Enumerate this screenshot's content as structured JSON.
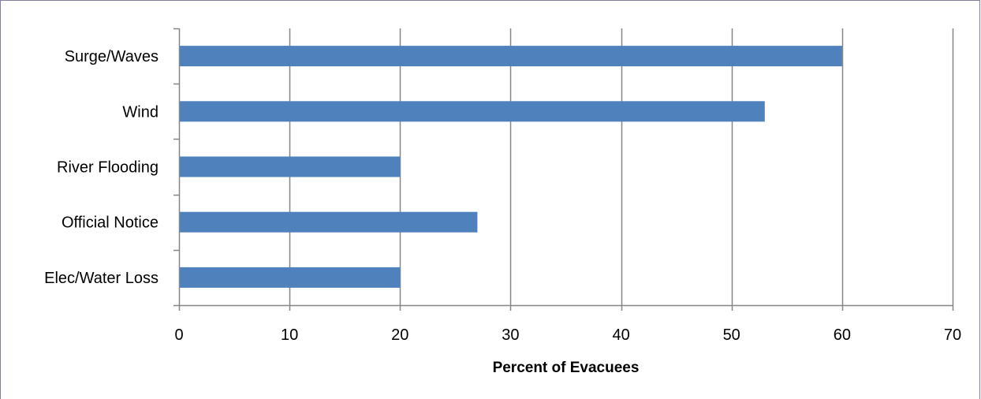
{
  "chart_data": {
    "type": "bar",
    "orientation": "horizontal",
    "categories": [
      "Surge/Waves",
      "Wind",
      "River Flooding",
      "Official Notice",
      "Elec/Water Loss"
    ],
    "values": [
      60,
      53,
      20,
      27,
      20
    ],
    "xlabel": "Percent of Evacuees",
    "ylabel": "",
    "xlim": [
      0,
      70
    ],
    "xticks": [
      0,
      10,
      20,
      30,
      40,
      50,
      60,
      70
    ],
    "grid": "vertical",
    "bar_color": "#4f81bd",
    "grid_color": "#868686"
  }
}
